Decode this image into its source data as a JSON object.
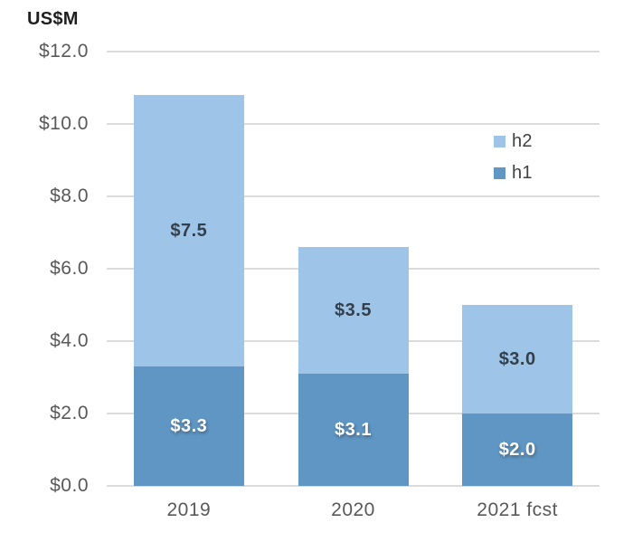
{
  "title": "US$M",
  "colors": {
    "h1": "#5F96C4",
    "h2": "#9EC5E8",
    "gridline": "#DCDCDC",
    "tick_text": "#595959",
    "title_text": "#1F1F1F",
    "bar_label_dark": "#333F4B",
    "bar_label_light": "#FFFFFF",
    "legend_text": "#404040"
  },
  "chart_data": {
    "type": "bar",
    "stacked": true,
    "title": "US$M",
    "ylabel": "US$M",
    "xlabel": "",
    "categories": [
      "2019",
      "2020",
      "2021 fcst"
    ],
    "series": [
      {
        "name": "h1",
        "color": "#5F96C4",
        "values": [
          3.3,
          3.1,
          2.0
        ],
        "labels": [
          "$3.3",
          "$3.1",
          "$2.0"
        ],
        "label_color": "#FFFFFF",
        "label_style": "light"
      },
      {
        "name": "h2",
        "color": "#9EC5E8",
        "values": [
          7.5,
          3.5,
          3.0
        ],
        "labels": [
          "$7.5",
          "$3.5",
          "$3.0"
        ],
        "label_color": "#333F4B",
        "label_style": "dark"
      }
    ],
    "totals": [
      10.8,
      6.6,
      5.0
    ],
    "ylim": [
      0,
      12
    ],
    "ytick_step": 2,
    "yticks": [
      "$0.0",
      "$2.0",
      "$4.0",
      "$6.0",
      "$8.0",
      "$10.0",
      "$12.0"
    ],
    "grid": true,
    "legend": {
      "position": "upper-right-inside",
      "entries": [
        "h2",
        "h1"
      ]
    }
  }
}
